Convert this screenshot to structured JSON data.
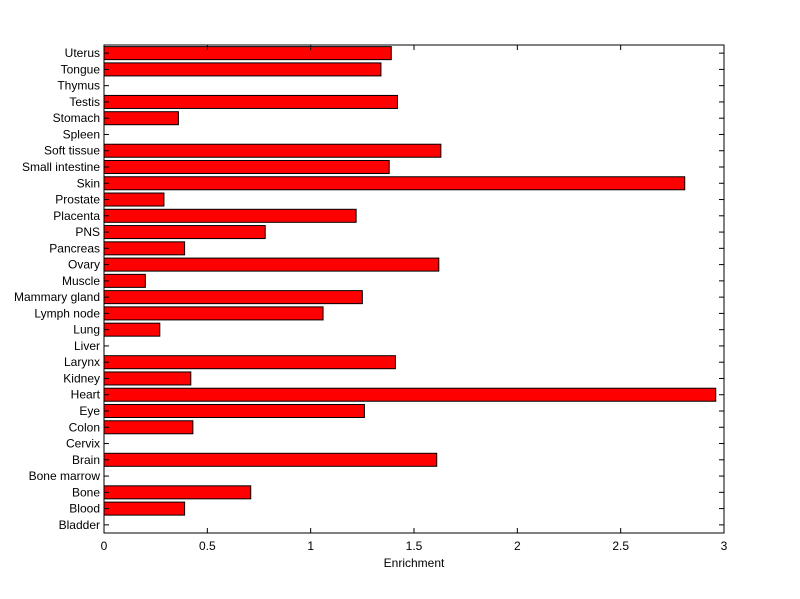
{
  "chart_data": {
    "type": "bar",
    "orientation": "horizontal",
    "title": "",
    "xlabel": "Enrichment",
    "ylabel": "",
    "xlim": [
      0,
      3
    ],
    "xticks": [
      0,
      0.5,
      1,
      1.5,
      2,
      2.5,
      3
    ],
    "xtick_labels": [
      "0",
      "0.5",
      "1",
      "1.5",
      "2",
      "2.5",
      "3"
    ],
    "grid": false,
    "legend": "none",
    "bar_color": "#ff0000",
    "edge_color": "#000000",
    "categories": [
      "Uterus",
      "Tongue",
      "Thymus",
      "Testis",
      "Stomach",
      "Spleen",
      "Soft tissue",
      "Small intestine",
      "Skin",
      "Prostate",
      "Placenta",
      "PNS",
      "Pancreas",
      "Ovary",
      "Muscle",
      "Mammary gland",
      "Lymph node",
      "Lung",
      "Liver",
      "Larynx",
      "Kidney",
      "Heart",
      "Eye",
      "Colon",
      "Cervix",
      "Brain",
      "Bone marrow",
      "Bone",
      "Blood",
      "Bladder"
    ],
    "values": [
      1.39,
      1.34,
      0,
      1.42,
      0.36,
      0,
      1.63,
      1.38,
      2.81,
      0.29,
      1.22,
      0.78,
      0.39,
      1.62,
      0.2,
      1.25,
      1.06,
      0.27,
      0,
      1.41,
      0.42,
      2.96,
      1.26,
      0.43,
      0,
      1.61,
      0,
      0.71,
      0.39,
      0
    ]
  }
}
